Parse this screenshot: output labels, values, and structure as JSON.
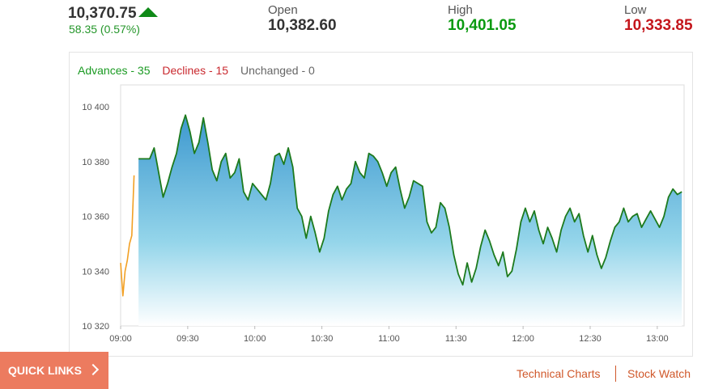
{
  "quote": {
    "last_price": "10,370.75",
    "change": "58.35 (0.57%)",
    "direction_icon": "up-arrow-icon",
    "open_label": "Open",
    "open_value": "10,382.60",
    "high_label": "High",
    "high_value": "10,401.05",
    "low_label": "Low",
    "low_value": "10,333.85"
  },
  "breadth": {
    "advances": "Advances - 35",
    "declines": "Declines - 15",
    "unchanged": "Unchanged - 0"
  },
  "colors": {
    "up": "#0a9a10",
    "down": "#c4161c",
    "preopen_line": "#f2a024",
    "main_line": "#1d7a1d",
    "accent": "#ec7b5f"
  },
  "chart_data": {
    "type": "area",
    "title": "",
    "xlabel": "",
    "ylabel": "",
    "ylim": [
      10320,
      10408
    ],
    "xlim": [
      "09:00",
      "13:12"
    ],
    "x_ticks": [
      "09:00",
      "09:30",
      "10:00",
      "10:30",
      "11:00",
      "11:30",
      "12:00",
      "12:30",
      "13:00"
    ],
    "y_ticks": [
      "10 320",
      "10 340",
      "10 360",
      "10 380",
      "10 400"
    ],
    "y_tick_values": [
      10320,
      10340,
      10360,
      10380,
      10400
    ],
    "series": [
      {
        "points": [
          [
            "09:00",
            10343
          ],
          [
            "09:01",
            10331
          ],
          [
            "09:02",
            10340
          ],
          [
            "09:03",
            10344
          ],
          [
            "09:04",
            10350
          ],
          [
            "09:05",
            10353
          ],
          [
            "09:06",
            10375
          ]
        ]
      },
      {
        "points": [
          [
            "09:08",
            10381
          ],
          [
            "09:11",
            10381
          ],
          [
            "09:13",
            10381
          ],
          [
            "09:15",
            10385
          ],
          [
            "09:17",
            10376
          ],
          [
            "09:19",
            10367
          ],
          [
            "09:21",
            10372
          ],
          [
            "09:23",
            10378
          ],
          [
            "09:25",
            10383
          ],
          [
            "09:27",
            10392
          ],
          [
            "09:29",
            10397
          ],
          [
            "09:31",
            10391
          ],
          [
            "09:33",
            10383
          ],
          [
            "09:35",
            10387
          ],
          [
            "09:37",
            10396
          ],
          [
            "09:39",
            10387
          ],
          [
            "09:41",
            10377
          ],
          [
            "09:43",
            10373
          ],
          [
            "09:45",
            10380
          ],
          [
            "09:47",
            10383
          ],
          [
            "09:49",
            10374
          ],
          [
            "09:51",
            10376
          ],
          [
            "09:53",
            10381
          ],
          [
            "09:55",
            10369
          ],
          [
            "09:57",
            10366
          ],
          [
            "09:59",
            10372
          ],
          [
            "10:01",
            10370
          ],
          [
            "10:03",
            10368
          ],
          [
            "10:05",
            10366
          ],
          [
            "10:07",
            10372
          ],
          [
            "10:09",
            10382
          ],
          [
            "10:11",
            10383
          ],
          [
            "10:13",
            10379
          ],
          [
            "10:15",
            10385
          ],
          [
            "10:17",
            10378
          ],
          [
            "10:19",
            10363
          ],
          [
            "10:21",
            10360
          ],
          [
            "10:23",
            10352
          ],
          [
            "10:25",
            10360
          ],
          [
            "10:27",
            10354
          ],
          [
            "10:29",
            10347
          ],
          [
            "10:31",
            10352
          ],
          [
            "10:33",
            10362
          ],
          [
            "10:35",
            10368
          ],
          [
            "10:37",
            10371
          ],
          [
            "10:39",
            10366
          ],
          [
            "10:41",
            10370
          ],
          [
            "10:43",
            10372
          ],
          [
            "10:45",
            10380
          ],
          [
            "10:47",
            10376
          ],
          [
            "10:49",
            10374
          ],
          [
            "10:51",
            10383
          ],
          [
            "10:53",
            10382
          ],
          [
            "10:55",
            10380
          ],
          [
            "10:57",
            10376
          ],
          [
            "10:59",
            10371
          ],
          [
            "11:01",
            10376
          ],
          [
            "11:03",
            10378
          ],
          [
            "11:05",
            10370
          ],
          [
            "11:07",
            10363
          ],
          [
            "11:09",
            10367
          ],
          [
            "11:11",
            10373
          ],
          [
            "11:13",
            10372
          ],
          [
            "11:15",
            10371
          ],
          [
            "11:17",
            10358
          ],
          [
            "11:19",
            10354
          ],
          [
            "11:21",
            10356
          ],
          [
            "11:23",
            10365
          ],
          [
            "11:25",
            10363
          ],
          [
            "11:27",
            10356
          ],
          [
            "11:29",
            10346
          ],
          [
            "11:31",
            10339
          ],
          [
            "11:33",
            10335
          ],
          [
            "11:35",
            10343
          ],
          [
            "11:37",
            10336
          ],
          [
            "11:39",
            10341
          ],
          [
            "11:41",
            10349
          ],
          [
            "11:43",
            10355
          ],
          [
            "11:45",
            10351
          ],
          [
            "11:47",
            10346
          ],
          [
            "11:49",
            10342
          ],
          [
            "11:51",
            10347
          ],
          [
            "11:53",
            10338
          ],
          [
            "11:55",
            10340
          ],
          [
            "11:57",
            10348
          ],
          [
            "11:59",
            10358
          ],
          [
            "12:01",
            10363
          ],
          [
            "12:03",
            10358
          ],
          [
            "12:05",
            10362
          ],
          [
            "12:07",
            10355
          ],
          [
            "12:09",
            10350
          ],
          [
            "12:11",
            10356
          ],
          [
            "12:13",
            10352
          ],
          [
            "12:15",
            10347
          ],
          [
            "12:17",
            10355
          ],
          [
            "12:19",
            10360
          ],
          [
            "12:21",
            10363
          ],
          [
            "12:23",
            10358
          ],
          [
            "12:25",
            10361
          ],
          [
            "12:27",
            10353
          ],
          [
            "12:29",
            10347
          ],
          [
            "12:31",
            10353
          ],
          [
            "12:33",
            10346
          ],
          [
            "12:35",
            10341
          ],
          [
            "12:37",
            10345
          ],
          [
            "12:39",
            10351
          ],
          [
            "12:41",
            10356
          ],
          [
            "12:43",
            10358
          ],
          [
            "12:45",
            10363
          ],
          [
            "12:47",
            10358
          ],
          [
            "12:49",
            10360
          ],
          [
            "12:51",
            10361
          ],
          [
            "12:53",
            10356
          ],
          [
            "12:55",
            10359
          ],
          [
            "12:57",
            10362
          ],
          [
            "12:59",
            10359
          ],
          [
            "13:01",
            10356
          ],
          [
            "13:03",
            10360
          ],
          [
            "13:05",
            10367
          ],
          [
            "13:07",
            10370
          ],
          [
            "13:09",
            10368
          ],
          [
            "13:11",
            10369
          ]
        ]
      }
    ],
    "grid": false,
    "legend": "none"
  },
  "footer": {
    "quick_links": "QUICK LINKS",
    "technical_charts": "Technical Charts",
    "stock_watch": "Stock Watch"
  }
}
